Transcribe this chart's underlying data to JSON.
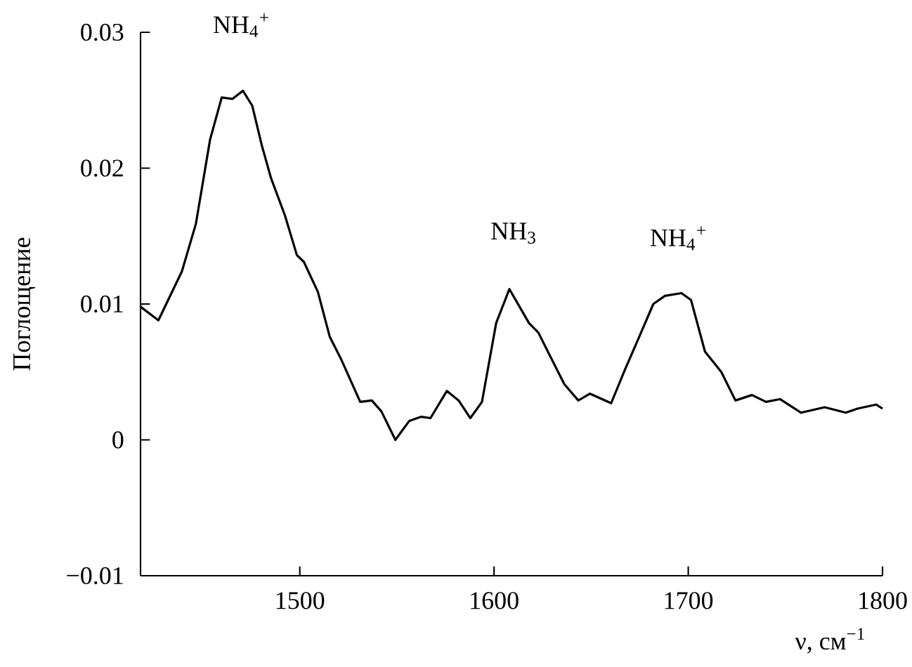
{
  "chart_data": {
    "type": "line",
    "xlabel": "ν, см$^{−1}$",
    "ylabel": "Поглощение",
    "xlim": [
      1418,
      1800
    ],
    "xticks": [
      1500,
      1600,
      1700,
      1800
    ],
    "ylim": [
      -0.01,
      0.03
    ],
    "yticks": [
      {
        "value": -0.01,
        "label": "−0.01"
      },
      0,
      0.01,
      0.02,
      0.03
    ],
    "series": [
      {
        "color": "#000000",
        "x": [
          1418,
          1427.2,
          1439.3,
          1446.5,
          1453.8,
          1459.8,
          1465.4,
          1470.7,
          1475.5,
          1480.4,
          1485.1,
          1492.4,
          1498.5,
          1502.1,
          1509.3,
          1515.4,
          1521.4,
          1531.1,
          1537.1,
          1542.0,
          1549.2,
          1556.4,
          1562.5,
          1567.3,
          1575.7,
          1581.8,
          1587.8,
          1593.8,
          1601.1,
          1607.9,
          1618.0,
          1622.8,
          1627.7,
          1636.2,
          1643.4,
          1649.4,
          1660.3,
          1667.5,
          1674.8,
          1682.0,
          1688.0,
          1696.5,
          1701.4,
          1708.6,
          1717.0,
          1724.3,
          1732.8,
          1740.0,
          1747.2,
          1758.1,
          1770.2,
          1781.1,
          1787.1,
          1796.7,
          1800
        ],
        "values": [
          0.0098,
          0.0088,
          0.0124,
          0.0159,
          0.0221,
          0.0252,
          0.0251,
          0.0257,
          0.0246,
          0.0217,
          0.0193,
          0.0165,
          0.0136,
          0.0131,
          0.0109,
          0.0076,
          0.0059,
          0.0028,
          0.0029,
          0.0021,
          0.0,
          0.0014,
          0.0017,
          0.0016,
          0.0036,
          0.0029,
          0.0016,
          0.0028,
          0.0086,
          0.0111,
          0.0086,
          0.0079,
          0.0065,
          0.0041,
          0.0029,
          0.0034,
          0.0027,
          0.0052,
          0.0076,
          0.01,
          0.0106,
          0.0108,
          0.0103,
          0.0065,
          0.005,
          0.0029,
          0.0033,
          0.0028,
          0.003,
          0.002,
          0.0024,
          0.002,
          0.0023,
          0.0026,
          0.0023
        ]
      }
    ],
    "annotations": [
      "NH$_{4}$$^{+}$",
      "NH$_{3}$",
      "NH$_{4}$$^{+}$"
    ]
  }
}
